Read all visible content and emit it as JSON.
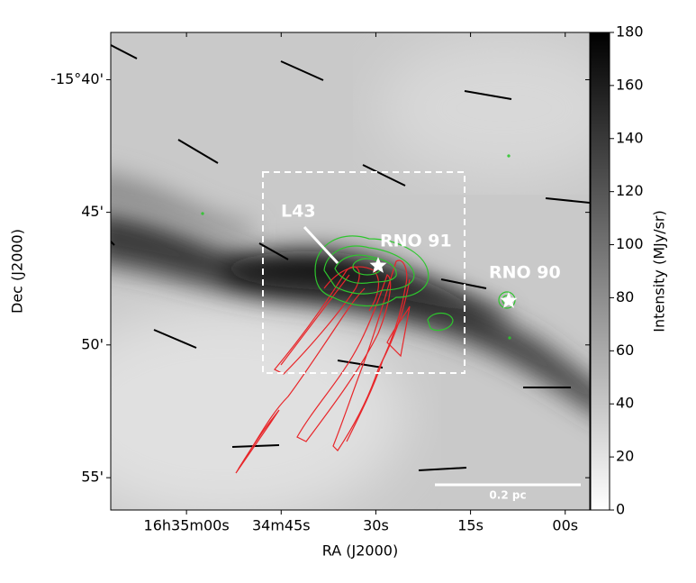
{
  "chart_data": {
    "type": "image",
    "xlabel": "RA (J2000)",
    "ylabel": "Dec (J2000)",
    "xlim": [
      248.8,
      248.4838
    ],
    "ylim": [
      -15.937,
      -15.637
    ],
    "xticks": [
      {
        "value": 248.75,
        "label": "16h35m00s"
      },
      {
        "value": 248.6875,
        "label": "34m45s"
      },
      {
        "value": 248.625,
        "label": "30s"
      },
      {
        "value": 248.5625,
        "label": "15s"
      },
      {
        "value": 248.5,
        "label": "00s"
      }
    ],
    "yticks": [
      {
        "value": -15.6667,
        "label": "-15°40'"
      },
      {
        "value": -15.75,
        "label": "45'"
      },
      {
        "value": -15.8333,
        "label": "50'"
      },
      {
        "value": -15.9167,
        "label": "55'"
      }
    ],
    "colorbar": {
      "label": "Intensity (MJy/sr)",
      "lim": [
        0,
        180
      ],
      "ticks": [
        0,
        20,
        40,
        60,
        80,
        100,
        120,
        140,
        160,
        180
      ],
      "colors": [
        "#ffffff",
        "#000000"
      ]
    },
    "annotations": [
      "L43",
      "RNO 91",
      "RNO 90",
      "0.2 pc"
    ]
  }
}
